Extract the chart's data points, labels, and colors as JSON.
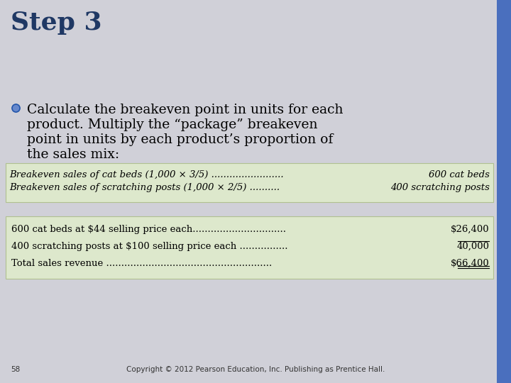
{
  "background_color": "#d0d0d8",
  "right_bar_color": "#4a6fbe",
  "title": "Step 3",
  "title_color": "#1f3864",
  "title_fontsize": 26,
  "bullet_text_lines": [
    "Calculate the breakeven point in units for each",
    "product. Multiply the “package” breakeven",
    "point in units by each product’s proportion of",
    "the sales mix:"
  ],
  "bullet_color": "#4472c4",
  "body_fontsize": 13.5,
  "table1_bg": "#dde8cc",
  "table1_border": "#b0c090",
  "table1_rows": [
    [
      "Breakeven sales of cat beds (1,000 × 3/5) ........................",
      "600 cat beds"
    ],
    [
      "Breakeven sales of scratching posts (1,000 × 2/5) ..........",
      "400 scratching posts"
    ]
  ],
  "table2_bg": "#dde8cc",
  "table2_border": "#b0c090",
  "table2_rows": [
    [
      "600 cat beds at $44 selling price each...............................",
      "$26,400",
      false
    ],
    [
      "400 scratching posts at $100 selling price each ................",
      "40,000",
      true
    ],
    [
      "Total sales revenue .......................................................",
      "$66,400",
      false
    ]
  ],
  "table_fontsize": 9.5,
  "footer_text": "Copyright © 2012 Pearson Education, Inc. Publishing as Prentice Hall.",
  "page_number": "58",
  "footer_fontsize": 7.5
}
